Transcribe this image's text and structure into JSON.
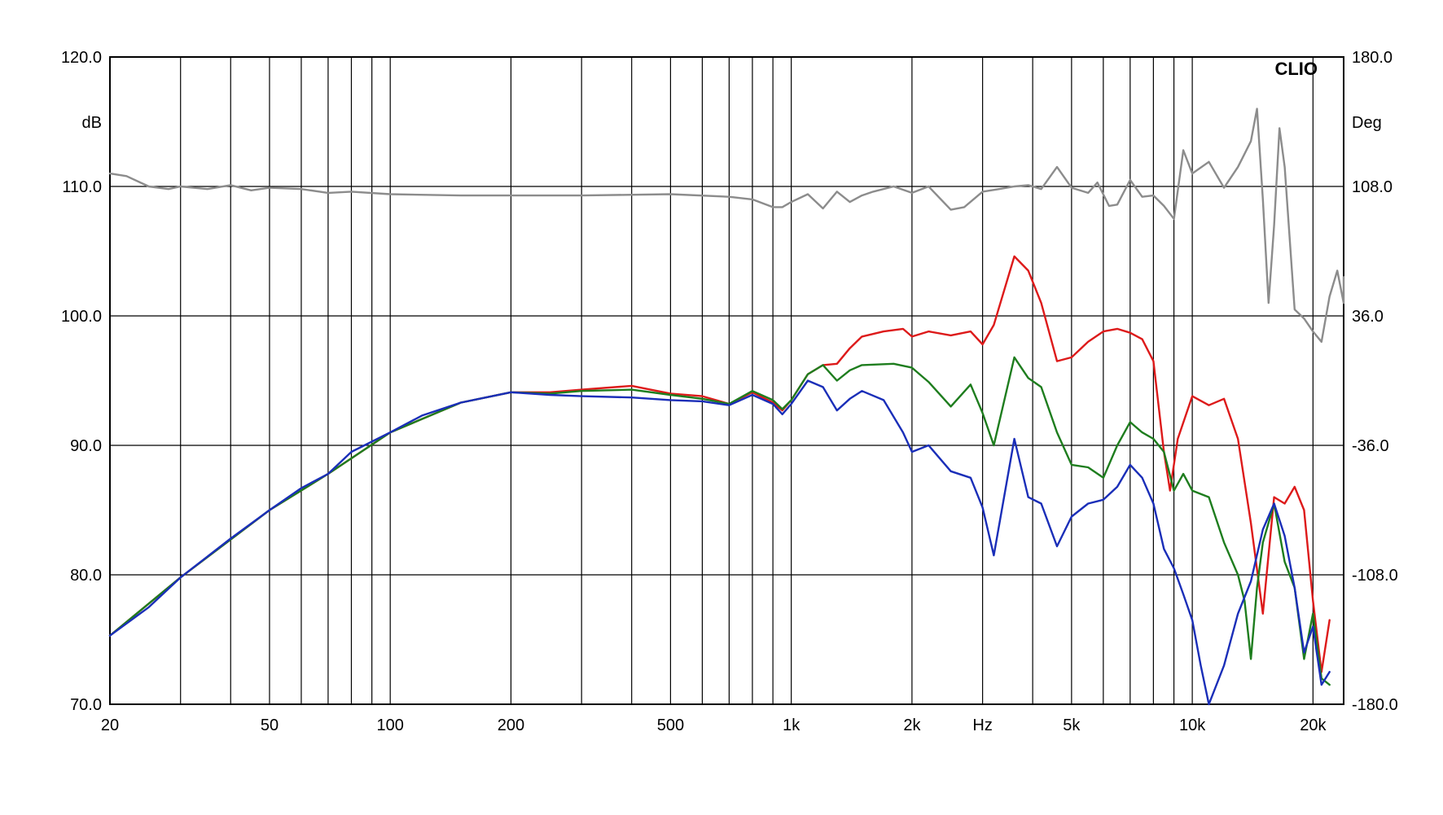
{
  "chart_data": {
    "type": "line",
    "watermark": "CLIO",
    "x_unit_label": "Hz",
    "left_axis": {
      "unit": "dB",
      "range": [
        70,
        120
      ],
      "ticks": [
        "70.0",
        "80.0",
        "90.0",
        "100.0",
        "110.0",
        "120.0"
      ],
      "tick_values": [
        70,
        80,
        90,
        100,
        110,
        120
      ]
    },
    "right_axis": {
      "unit": "Deg",
      "range": [
        -180,
        180
      ],
      "ticks": [
        "-180.0",
        "-108.0",
        "-36.0",
        "36.0",
        "108.0",
        "180.0"
      ],
      "tick_values": [
        -180,
        -108,
        -36,
        36,
        108,
        180
      ]
    },
    "x_axis": {
      "scale": "log",
      "range": [
        20,
        20000
      ],
      "tick_labels": [
        {
          "value": 20,
          "label": "20"
        },
        {
          "value": 50,
          "label": "50"
        },
        {
          "value": 100,
          "label": "100"
        },
        {
          "value": 200,
          "label": "200"
        },
        {
          "value": 500,
          "label": "500"
        },
        {
          "value": 1000,
          "label": "1k"
        },
        {
          "value": 2000,
          "label": "2k"
        },
        {
          "value": 5000,
          "label": "5k"
        },
        {
          "value": 10000,
          "label": "10k"
        },
        {
          "value": 20000,
          "label": "20k"
        }
      ]
    },
    "grid": true,
    "colors": {
      "red": "#dd1a1a",
      "green": "#1e7d1e",
      "blue": "#1a2eb8",
      "gray": "#8c8c8c",
      "grid": "#000000"
    },
    "series": [
      {
        "color": "red",
        "axis": "left",
        "points": [
          [
            20,
            75.3
          ],
          [
            30,
            79.8
          ],
          [
            50,
            85
          ],
          [
            70,
            87.8
          ],
          [
            100,
            91
          ],
          [
            150,
            93.3
          ],
          [
            200,
            94.1
          ],
          [
            250,
            94.1
          ],
          [
            300,
            94.3
          ],
          [
            400,
            94.6
          ],
          [
            500,
            94
          ],
          [
            600,
            93.8
          ],
          [
            700,
            93.2
          ],
          [
            800,
            94.1
          ],
          [
            900,
            93.3
          ],
          [
            950,
            92.7
          ],
          [
            1000,
            93.5
          ],
          [
            1100,
            95.5
          ],
          [
            1200,
            96.2
          ],
          [
            1300,
            96.3
          ],
          [
            1400,
            97.5
          ],
          [
            1500,
            98.4
          ],
          [
            1700,
            98.8
          ],
          [
            1900,
            99
          ],
          [
            2000,
            98.4
          ],
          [
            2200,
            98.8
          ],
          [
            2500,
            98.5
          ],
          [
            2800,
            98.8
          ],
          [
            3000,
            97.8
          ],
          [
            3200,
            99.3
          ],
          [
            3600,
            104.6
          ],
          [
            3900,
            103.5
          ],
          [
            4200,
            101
          ],
          [
            4600,
            96.5
          ],
          [
            5000,
            96.8
          ],
          [
            5500,
            98
          ],
          [
            6000,
            98.8
          ],
          [
            6500,
            99
          ],
          [
            7000,
            98.7
          ],
          [
            7500,
            98.2
          ],
          [
            8000,
            96.5
          ],
          [
            8500,
            89.5
          ],
          [
            8800,
            86.5
          ],
          [
            9200,
            90.5
          ],
          [
            10000,
            93.8
          ],
          [
            11000,
            93.1
          ],
          [
            12000,
            93.6
          ],
          [
            13000,
            90.5
          ],
          [
            14000,
            84
          ],
          [
            15000,
            77
          ],
          [
            16000,
            86
          ],
          [
            17000,
            85.5
          ],
          [
            18000,
            86.8
          ],
          [
            19000,
            85
          ],
          [
            20000,
            78
          ],
          [
            21000,
            72.5
          ],
          [
            22000,
            76.5
          ]
        ]
      },
      {
        "color": "green",
        "axis": "left",
        "points": [
          [
            20,
            75.3
          ],
          [
            30,
            79.8
          ],
          [
            50,
            85
          ],
          [
            70,
            87.8
          ],
          [
            100,
            91
          ],
          [
            150,
            93.3
          ],
          [
            200,
            94.1
          ],
          [
            250,
            94
          ],
          [
            300,
            94.2
          ],
          [
            400,
            94.3
          ],
          [
            500,
            93.9
          ],
          [
            600,
            93.6
          ],
          [
            700,
            93.2
          ],
          [
            800,
            94.2
          ],
          [
            900,
            93.5
          ],
          [
            950,
            92.8
          ],
          [
            1000,
            93.5
          ],
          [
            1100,
            95.5
          ],
          [
            1200,
            96.2
          ],
          [
            1300,
            95
          ],
          [
            1400,
            95.8
          ],
          [
            1500,
            96.2
          ],
          [
            1800,
            96.3
          ],
          [
            2000,
            96
          ],
          [
            2200,
            94.9
          ],
          [
            2500,
            93
          ],
          [
            2800,
            94.7
          ],
          [
            3000,
            92.5
          ],
          [
            3200,
            90
          ],
          [
            3600,
            96.8
          ],
          [
            3900,
            95.2
          ],
          [
            4200,
            94.5
          ],
          [
            4600,
            91
          ],
          [
            5000,
            88.5
          ],
          [
            5500,
            88.3
          ],
          [
            6000,
            87.5
          ],
          [
            6500,
            90
          ],
          [
            7000,
            91.8
          ],
          [
            7500,
            91
          ],
          [
            8000,
            90.5
          ],
          [
            8500,
            89.5
          ],
          [
            9000,
            86.5
          ],
          [
            9500,
            87.8
          ],
          [
            10000,
            86.5
          ],
          [
            11000,
            86
          ],
          [
            12000,
            82.5
          ],
          [
            13000,
            80
          ],
          [
            13500,
            78
          ],
          [
            14000,
            73.5
          ],
          [
            14500,
            79
          ],
          [
            15000,
            82.5
          ],
          [
            16000,
            85.5
          ],
          [
            17000,
            81
          ],
          [
            18000,
            79
          ],
          [
            19000,
            73.5
          ],
          [
            20000,
            77
          ],
          [
            21000,
            72
          ],
          [
            22000,
            71.5
          ]
        ]
      },
      {
        "color": "blue",
        "axis": "left",
        "points": [
          [
            20,
            75.3
          ],
          [
            25,
            77.5
          ],
          [
            30,
            79.8
          ],
          [
            40,
            82.8
          ],
          [
            50,
            85
          ],
          [
            60,
            86.7
          ],
          [
            70,
            87.8
          ],
          [
            80,
            89.5
          ],
          [
            100,
            91
          ],
          [
            120,
            92.3
          ],
          [
            150,
            93.3
          ],
          [
            200,
            94.1
          ],
          [
            250,
            93.9
          ],
          [
            300,
            93.8
          ],
          [
            400,
            93.7
          ],
          [
            500,
            93.5
          ],
          [
            600,
            93.4
          ],
          [
            700,
            93.1
          ],
          [
            800,
            93.9
          ],
          [
            900,
            93.2
          ],
          [
            950,
            92.4
          ],
          [
            1000,
            93.2
          ],
          [
            1100,
            95
          ],
          [
            1200,
            94.5
          ],
          [
            1300,
            92.7
          ],
          [
            1400,
            93.6
          ],
          [
            1500,
            94.2
          ],
          [
            1700,
            93.5
          ],
          [
            1900,
            91
          ],
          [
            2000,
            89.5
          ],
          [
            2200,
            90
          ],
          [
            2500,
            88
          ],
          [
            2800,
            87.5
          ],
          [
            3000,
            85.2
          ],
          [
            3200,
            81.5
          ],
          [
            3600,
            90.5
          ],
          [
            3900,
            86
          ],
          [
            4200,
            85.5
          ],
          [
            4600,
            82.2
          ],
          [
            5000,
            84.5
          ],
          [
            5500,
            85.5
          ],
          [
            6000,
            85.8
          ],
          [
            6500,
            86.8
          ],
          [
            7000,
            88.5
          ],
          [
            7500,
            87.5
          ],
          [
            8000,
            85.5
          ],
          [
            8500,
            82
          ],
          [
            9000,
            80.5
          ],
          [
            9500,
            78.5
          ],
          [
            10000,
            76.5
          ],
          [
            10500,
            73
          ],
          [
            11000,
            69
          ],
          [
            12000,
            73
          ],
          [
            13000,
            77
          ],
          [
            14000,
            79.5
          ],
          [
            15000,
            83.5
          ],
          [
            16000,
            85.5
          ],
          [
            17000,
            83
          ],
          [
            18000,
            79
          ],
          [
            19000,
            74
          ],
          [
            20000,
            76
          ],
          [
            21000,
            71.5
          ],
          [
            22000,
            72.5
          ]
        ]
      },
      {
        "color": "gray",
        "axis": "left",
        "points": [
          [
            20,
            111
          ],
          [
            22,
            110.8
          ],
          [
            25,
            110
          ],
          [
            28,
            109.8
          ],
          [
            30,
            110
          ],
          [
            35,
            109.8
          ],
          [
            40,
            110.1
          ],
          [
            45,
            109.7
          ],
          [
            50,
            109.9
          ],
          [
            60,
            109.8
          ],
          [
            70,
            109.5
          ],
          [
            80,
            109.6
          ],
          [
            100,
            109.4
          ],
          [
            150,
            109.3
          ],
          [
            200,
            109.3
          ],
          [
            300,
            109.3
          ],
          [
            500,
            109.4
          ],
          [
            700,
            109.2
          ],
          [
            800,
            109
          ],
          [
            900,
            108.4
          ],
          [
            950,
            108.4
          ],
          [
            1000,
            108.8
          ],
          [
            1100,
            109.4
          ],
          [
            1200,
            108.3
          ],
          [
            1300,
            109.6
          ],
          [
            1400,
            108.8
          ],
          [
            1500,
            109.3
          ],
          [
            1600,
            109.6
          ],
          [
            1800,
            110
          ],
          [
            2000,
            109.5
          ],
          [
            2200,
            110
          ],
          [
            2500,
            108.2
          ],
          [
            2700,
            108.4
          ],
          [
            3000,
            109.6
          ],
          [
            3300,
            109.8
          ],
          [
            3600,
            110
          ],
          [
            3900,
            110.1
          ],
          [
            4200,
            109.8
          ],
          [
            4600,
            111.5
          ],
          [
            5000,
            109.9
          ],
          [
            5500,
            109.5
          ],
          [
            5800,
            110.3
          ],
          [
            6200,
            108.5
          ],
          [
            6500,
            108.6
          ],
          [
            7000,
            110.5
          ],
          [
            7500,
            109.2
          ],
          [
            8000,
            109.3
          ],
          [
            8500,
            108.5
          ],
          [
            9000,
            107.5
          ],
          [
            9500,
            112.8
          ],
          [
            10000,
            111
          ],
          [
            11000,
            111.9
          ],
          [
            12000,
            109.9
          ],
          [
            13000,
            111.5
          ],
          [
            14000,
            113.5
          ],
          [
            14500,
            116
          ],
          [
            15000,
            109
          ],
          [
            15500,
            101
          ],
          [
            16000,
            107
          ],
          [
            16500,
            114.5
          ],
          [
            17000,
            111.5
          ],
          [
            18000,
            100.5
          ],
          [
            19000,
            99.8
          ],
          [
            20000,
            98.8
          ],
          [
            21000,
            98
          ],
          [
            22000,
            101.5
          ],
          [
            23000,
            103.5
          ],
          [
            24000,
            101
          ],
          [
            25000,
            103
          ]
        ]
      }
    ]
  }
}
